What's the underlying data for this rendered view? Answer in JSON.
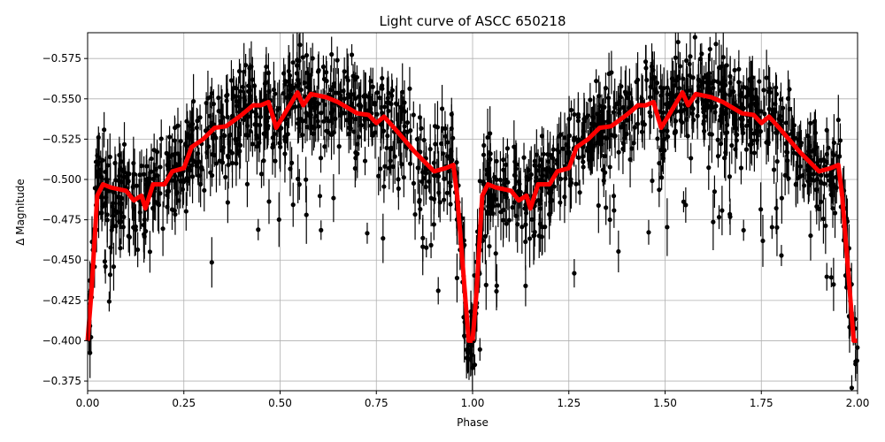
{
  "chart_data": {
    "type": "scatter",
    "title": "Light curve of ASCC 650218",
    "xlabel": "Phase",
    "ylabel": "Δ Magnitude",
    "xlim": [
      0.0,
      2.0
    ],
    "ylim": [
      -0.369,
      -0.591
    ],
    "y_inverted": true,
    "grid": true,
    "x_ticks": [
      "0.00",
      "0.25",
      "0.50",
      "0.75",
      "1.00",
      "1.25",
      "1.50",
      "1.75",
      "2.00"
    ],
    "x_tick_values": [
      0,
      0.25,
      0.5,
      0.75,
      1,
      1.25,
      1.5,
      1.75,
      2
    ],
    "y_ticks": [
      "−0.575",
      "−0.550",
      "−0.525",
      "−0.500",
      "−0.475",
      "−0.450",
      "−0.425",
      "−0.400",
      "−0.375"
    ],
    "y_tick_values": [
      -0.575,
      -0.55,
      -0.525,
      -0.5,
      -0.475,
      -0.45,
      -0.425,
      -0.4,
      -0.375
    ],
    "observations": {
      "color": "#000000",
      "marker": "dot-with-errorbar"
    },
    "model": {
      "color": "#ff0000",
      "phase": [
        0.0,
        0.01,
        0.025,
        0.04,
        0.06,
        0.1,
        0.12,
        0.14,
        0.15,
        0.17,
        0.2,
        0.22,
        0.25,
        0.27,
        0.3,
        0.33,
        0.36,
        0.4,
        0.43,
        0.45,
        0.47,
        0.49,
        0.51,
        0.53,
        0.545,
        0.56,
        0.58,
        0.62,
        0.65,
        0.7,
        0.73,
        0.75,
        0.77,
        0.8,
        0.85,
        0.9,
        0.93,
        0.95,
        0.96,
        0.98,
        0.99,
        1.0
      ],
      "magnitude": [
        -0.4,
        -0.43,
        -0.49,
        -0.497,
        -0.495,
        -0.493,
        -0.487,
        -0.49,
        -0.482,
        -0.497,
        -0.497,
        -0.505,
        -0.507,
        -0.52,
        -0.525,
        -0.532,
        -0.533,
        -0.54,
        -0.546,
        -0.546,
        -0.548,
        -0.532,
        -0.54,
        -0.548,
        -0.554,
        -0.546,
        -0.553,
        -0.551,
        -0.548,
        -0.541,
        -0.54,
        -0.535,
        -0.539,
        -0.531,
        -0.517,
        -0.505,
        -0.507,
        -0.509,
        -0.49,
        -0.43,
        -0.4,
        -0.4
      ]
    }
  }
}
